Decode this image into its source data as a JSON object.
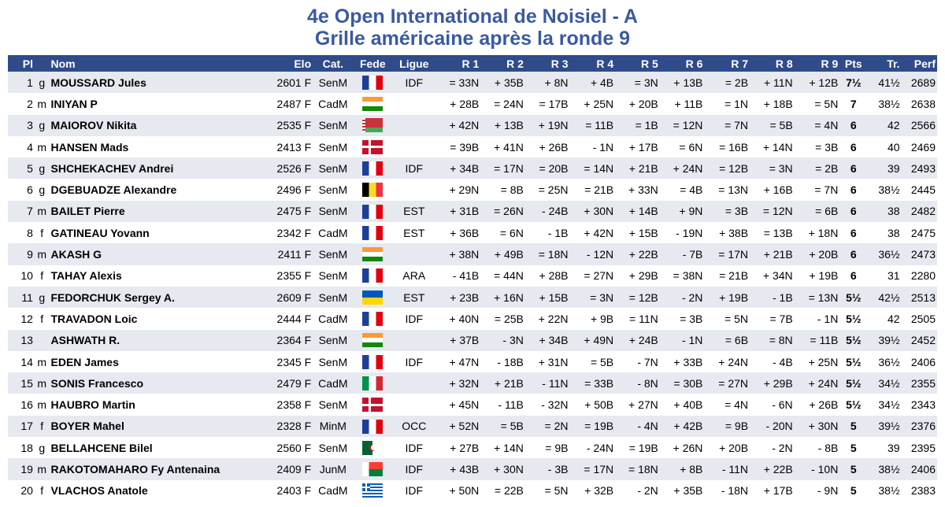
{
  "title_line1": "4e Open International de Noisiel - A",
  "title_line2": "Grille américaine après la ronde 9",
  "headers": [
    "Pl",
    "Nom",
    "Elo",
    "Cat.",
    "Fede",
    "Ligue",
    "R 1",
    "R 2",
    "R 3",
    "R 4",
    "R 5",
    "R 6",
    "R 7",
    "R 8",
    "R 9",
    "Pts",
    "Tr.",
    "Perf"
  ],
  "rows": [
    {
      "pl": "1",
      "title": "g",
      "name": "MOUSSARD Jules",
      "elo": "2601 F",
      "cat": "SenM",
      "fede": "france-flag-icon",
      "ligue": "IDF",
      "r": [
        "= 33N",
        "+ 35B",
        "+ 8N",
        "+ 4B",
        "= 3N",
        "+ 13B",
        "= 2B",
        "+ 11N",
        "+ 12B"
      ],
      "pts": "7½",
      "tr": "41½",
      "perf": "2689"
    },
    {
      "pl": "2",
      "title": "m",
      "name": "INIYAN P",
      "elo": "2487 F",
      "cat": "CadM",
      "fede": "india-flag-icon",
      "ligue": "",
      "r": [
        "+ 28B",
        "= 24N",
        "= 17B",
        "+ 25N",
        "+ 20B",
        "+ 11B",
        "= 1N",
        "+ 18B",
        "= 5N"
      ],
      "pts": "7",
      "tr": "38½",
      "perf": "2638"
    },
    {
      "pl": "3",
      "title": "g",
      "name": "MAIOROV Nikita",
      "elo": "2535 F",
      "cat": "SenM",
      "fede": "belarus-flag-icon",
      "ligue": "",
      "r": [
        "+ 42N",
        "+ 13B",
        "+ 19N",
        "= 11B",
        "= 1B",
        "= 12N",
        "= 7N",
        "= 5B",
        "= 4N"
      ],
      "pts": "6",
      "tr": "42",
      "perf": "2566"
    },
    {
      "pl": "4",
      "title": "m",
      "name": "HANSEN Mads",
      "elo": "2413 F",
      "cat": "SenM",
      "fede": "denmark-flag-icon",
      "ligue": "",
      "r": [
        "= 39B",
        "+ 41N",
        "+ 26B",
        "- 1N",
        "+ 17B",
        "= 6N",
        "= 16B",
        "+ 14N",
        "= 3B"
      ],
      "pts": "6",
      "tr": "40",
      "perf": "2469"
    },
    {
      "pl": "5",
      "title": "g",
      "name": "SHCHEKACHEV Andrei",
      "elo": "2526 F",
      "cat": "SenM",
      "fede": "france-flag-icon",
      "ligue": "IDF",
      "r": [
        "+ 34B",
        "= 17N",
        "= 20B",
        "= 14N",
        "+ 21B",
        "+ 24N",
        "= 12B",
        "= 3N",
        "= 2B"
      ],
      "pts": "6",
      "tr": "39",
      "perf": "2493"
    },
    {
      "pl": "6",
      "title": "g",
      "name": "DGEBUADZE Alexandre",
      "elo": "2496 F",
      "cat": "SenM",
      "fede": "belgium-flag-icon",
      "ligue": "",
      "r": [
        "+ 29N",
        "= 8B",
        "= 25N",
        "= 21B",
        "+ 33N",
        "= 4B",
        "= 13N",
        "+ 16B",
        "= 7N"
      ],
      "pts": "6",
      "tr": "38½",
      "perf": "2445"
    },
    {
      "pl": "7",
      "title": "m",
      "name": "BAILET Pierre",
      "elo": "2475 F",
      "cat": "SenM",
      "fede": "france-flag-icon",
      "ligue": "EST",
      "r": [
        "+ 31B",
        "= 26N",
        "- 24B",
        "+ 30N",
        "+ 14B",
        "+ 9N",
        "= 3B",
        "= 12N",
        "= 6B"
      ],
      "pts": "6",
      "tr": "38",
      "perf": "2482"
    },
    {
      "pl": "8",
      "title": "f",
      "name": "GATINEAU Yovann",
      "elo": "2342 F",
      "cat": "CadM",
      "fede": "france-flag-icon",
      "ligue": "EST",
      "r": [
        "+ 36B",
        "= 6N",
        "- 1B",
        "+ 42N",
        "+ 15B",
        "- 19N",
        "+ 38B",
        "= 13B",
        "+ 18N"
      ],
      "pts": "6",
      "tr": "38",
      "perf": "2475"
    },
    {
      "pl": "9",
      "title": "m",
      "name": "AKASH G",
      "elo": "2411 F",
      "cat": "SenM",
      "fede": "india-flag-icon",
      "ligue": "",
      "r": [
        "+ 38N",
        "+ 49B",
        "= 18N",
        "- 12N",
        "+ 22B",
        "- 7B",
        "= 17N",
        "+ 21B",
        "+ 20B"
      ],
      "pts": "6",
      "tr": "36½",
      "perf": "2473"
    },
    {
      "pl": "10",
      "title": "f",
      "name": "TAHAY Alexis",
      "elo": "2355 F",
      "cat": "SenM",
      "fede": "france-flag-icon",
      "ligue": "ARA",
      "r": [
        "- 41B",
        "= 44N",
        "+ 28B",
        "= 27N",
        "+ 29B",
        "= 38N",
        "= 21B",
        "+ 34N",
        "+ 19B"
      ],
      "pts": "6",
      "tr": "31",
      "perf": "2280"
    },
    {
      "pl": "11",
      "title": "g",
      "name": "FEDORCHUK Sergey A.",
      "elo": "2609 F",
      "cat": "SenM",
      "fede": "ukraine-flag-icon",
      "ligue": "EST",
      "r": [
        "+ 23B",
        "+ 16N",
        "+ 15B",
        "= 3N",
        "= 12B",
        "- 2N",
        "+ 19B",
        "- 1B",
        "= 13N"
      ],
      "pts": "5½",
      "tr": "42½",
      "perf": "2513"
    },
    {
      "pl": "12",
      "title": "f",
      "name": "TRAVADON Loic",
      "elo": "2444 F",
      "cat": "CadM",
      "fede": "france-flag-icon",
      "ligue": "IDF",
      "r": [
        "+ 40N",
        "= 25B",
        "+ 22N",
        "+ 9B",
        "= 11N",
        "= 3B",
        "= 5N",
        "= 7B",
        "- 1N"
      ],
      "pts": "5½",
      "tr": "42",
      "perf": "2505"
    },
    {
      "pl": "13",
      "title": "",
      "name": "ASHWATH R.",
      "elo": "2364 F",
      "cat": "SenM",
      "fede": "india-flag-icon",
      "ligue": "",
      "r": [
        "+ 37B",
        "- 3N",
        "+ 34B",
        "+ 49N",
        "+ 24B",
        "- 1N",
        "= 6B",
        "= 8N",
        "= 11B"
      ],
      "pts": "5½",
      "tr": "39½",
      "perf": "2452"
    },
    {
      "pl": "14",
      "title": "m",
      "name": "EDEN James",
      "elo": "2345 F",
      "cat": "SenM",
      "fede": "france-flag-icon",
      "ligue": "IDF",
      "r": [
        "+ 47N",
        "- 18B",
        "+ 31N",
        "= 5B",
        "- 7N",
        "+ 33B",
        "+ 24N",
        "- 4B",
        "+ 25N"
      ],
      "pts": "5½",
      "tr": "36½",
      "perf": "2406"
    },
    {
      "pl": "15",
      "title": "m",
      "name": "SONIS Francesco",
      "elo": "2479 F",
      "cat": "CadM",
      "fede": "italy-flag-icon",
      "ligue": "",
      "r": [
        "+ 32N",
        "+ 21B",
        "- 11N",
        "= 33B",
        "- 8N",
        "= 30B",
        "= 27N",
        "+ 29B",
        "+ 24N"
      ],
      "pts": "5½",
      "tr": "34½",
      "perf": "2355"
    },
    {
      "pl": "16",
      "title": "m",
      "name": "HAUBRO Martin",
      "elo": "2358 F",
      "cat": "SenM",
      "fede": "denmark-flag-icon",
      "ligue": "",
      "r": [
        "+ 45N",
        "- 11B",
        "- 32N",
        "+ 50B",
        "+ 27N",
        "+ 40B",
        "= 4N",
        "- 6N",
        "+ 26B"
      ],
      "pts": "5½",
      "tr": "34½",
      "perf": "2343"
    },
    {
      "pl": "17",
      "title": "f",
      "name": "BOYER Mahel",
      "elo": "2328 F",
      "cat": "MinM",
      "fede": "france-flag-icon",
      "ligue": "OCC",
      "r": [
        "+ 52N",
        "= 5B",
        "= 2N",
        "= 19B",
        "- 4N",
        "+ 42B",
        "= 9B",
        "- 20N",
        "+ 30N"
      ],
      "pts": "5",
      "tr": "39½",
      "perf": "2376"
    },
    {
      "pl": "18",
      "title": "g",
      "name": "BELLAHCENE Bilel",
      "elo": "2560 F",
      "cat": "SenM",
      "fede": "algeria-flag-icon",
      "ligue": "IDF",
      "r": [
        "+ 27B",
        "+ 14N",
        "= 9B",
        "- 24N",
        "= 19B",
        "+ 26N",
        "+ 20B",
        "- 2N",
        "- 8B"
      ],
      "pts": "5",
      "tr": "39",
      "perf": "2395"
    },
    {
      "pl": "19",
      "title": "m",
      "name": "RAKOTOMAHARO Fy Antenaina",
      "elo": "2409 F",
      "cat": "JunM",
      "fede": "madagascar-flag-icon",
      "ligue": "IDF",
      "r": [
        "+ 43B",
        "+ 30N",
        "- 3B",
        "= 17N",
        "= 18N",
        "+ 8B",
        "- 11N",
        "+ 22B",
        "- 10N"
      ],
      "pts": "5",
      "tr": "38½",
      "perf": "2406"
    },
    {
      "pl": "20",
      "title": "f",
      "name": "VLACHOS Anatole",
      "elo": "2403 F",
      "cat": "CadM",
      "fede": "greece-flag-icon",
      "ligue": "IDF",
      "r": [
        "+ 50N",
        "= 22B",
        "= 5N",
        "+ 32B",
        "- 2N",
        "+ 35B",
        "- 18N",
        "+ 17B",
        "- 9N"
      ],
      "pts": "5",
      "tr": "38½",
      "perf": "2383"
    }
  ],
  "colors": {
    "title": "#3a5aa0",
    "header_bg": "#2f4b8a",
    "row_alt": "#e6e9f0"
  }
}
